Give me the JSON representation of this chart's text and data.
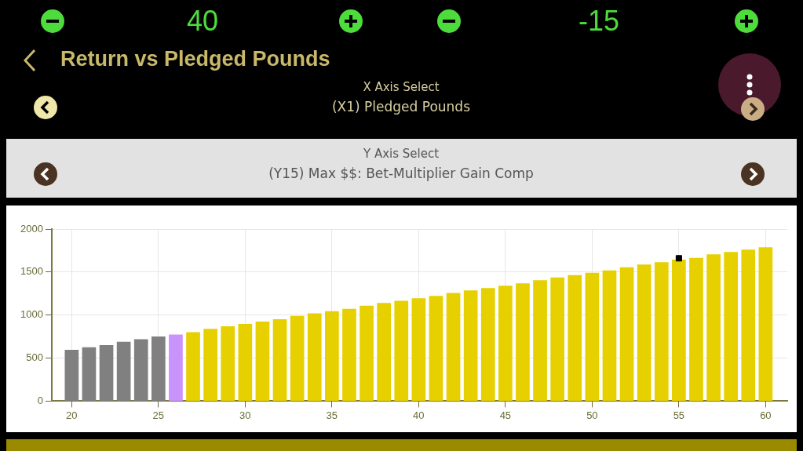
{
  "chart_data": {
    "type": "bar",
    "title": "Return vs Pledged Pounds",
    "annotations": [
      "40",
      "-15",
      "X Axis Select",
      "(X1) Pledged Pounds",
      "Y Axis Select",
      "(Y15) Max $$: Bet-Multiplier Gain Comp"
    ],
    "x": [
      20,
      21,
      22,
      23,
      24,
      25,
      26,
      27,
      28,
      29,
      30,
      31,
      32,
      33,
      34,
      35,
      36,
      37,
      38,
      39,
      40,
      41,
      42,
      43,
      44,
      45,
      46,
      47,
      48,
      49,
      50,
      51,
      52,
      53,
      54,
      55,
      56,
      57,
      58,
      59,
      60
    ],
    "values": [
      597,
      625,
      652,
      689,
      720,
      751,
      775,
      802,
      840,
      870,
      898,
      925,
      952,
      990,
      1020,
      1044,
      1072,
      1109,
      1140,
      1167,
      1195,
      1222,
      1256,
      1287,
      1314,
      1341,
      1369,
      1406,
      1437,
      1464,
      1491,
      1519,
      1556,
      1587,
      1614,
      1645,
      1666,
      1706,
      1734,
      1761,
      1788
    ],
    "colors": [
      "#808080",
      "#808080",
      "#808080",
      "#808080",
      "#808080",
      "#808080",
      "#c993fc",
      "#e6d000",
      "#e6d000",
      "#e6d000",
      "#e6d000",
      "#e6d000",
      "#e6d000",
      "#e6d000",
      "#e6d000",
      "#e6d000",
      "#e6d000",
      "#e6d000",
      "#e6d000",
      "#e6d000",
      "#e6d000",
      "#e6d000",
      "#e6d000",
      "#e6d000",
      "#e6d000",
      "#e6d000",
      "#e6d000",
      "#e6d000",
      "#e6d000",
      "#e6d000",
      "#e6d000",
      "#e6d000",
      "#e6d000",
      "#e6d000",
      "#e6d000",
      "#e6d000",
      "#e6d000",
      "#e6d000",
      "#e6d000",
      "#e6d000",
      "#e6d000"
    ],
    "series": [
      {
        "type": "scatter",
        "x": [
          55
        ],
        "values": [
          1660
        ],
        "color": "#000000"
      }
    ],
    "xlim": [
      18.85,
      61.25
    ],
    "xticks": [
      20,
      25,
      30,
      35,
      40,
      45,
      50,
      55,
      60
    ],
    "ylim": [
      0,
      2000
    ],
    "yticks": [
      0,
      500,
      1000,
      1500,
      2000
    ],
    "grid": true,
    "legend": false
  }
}
